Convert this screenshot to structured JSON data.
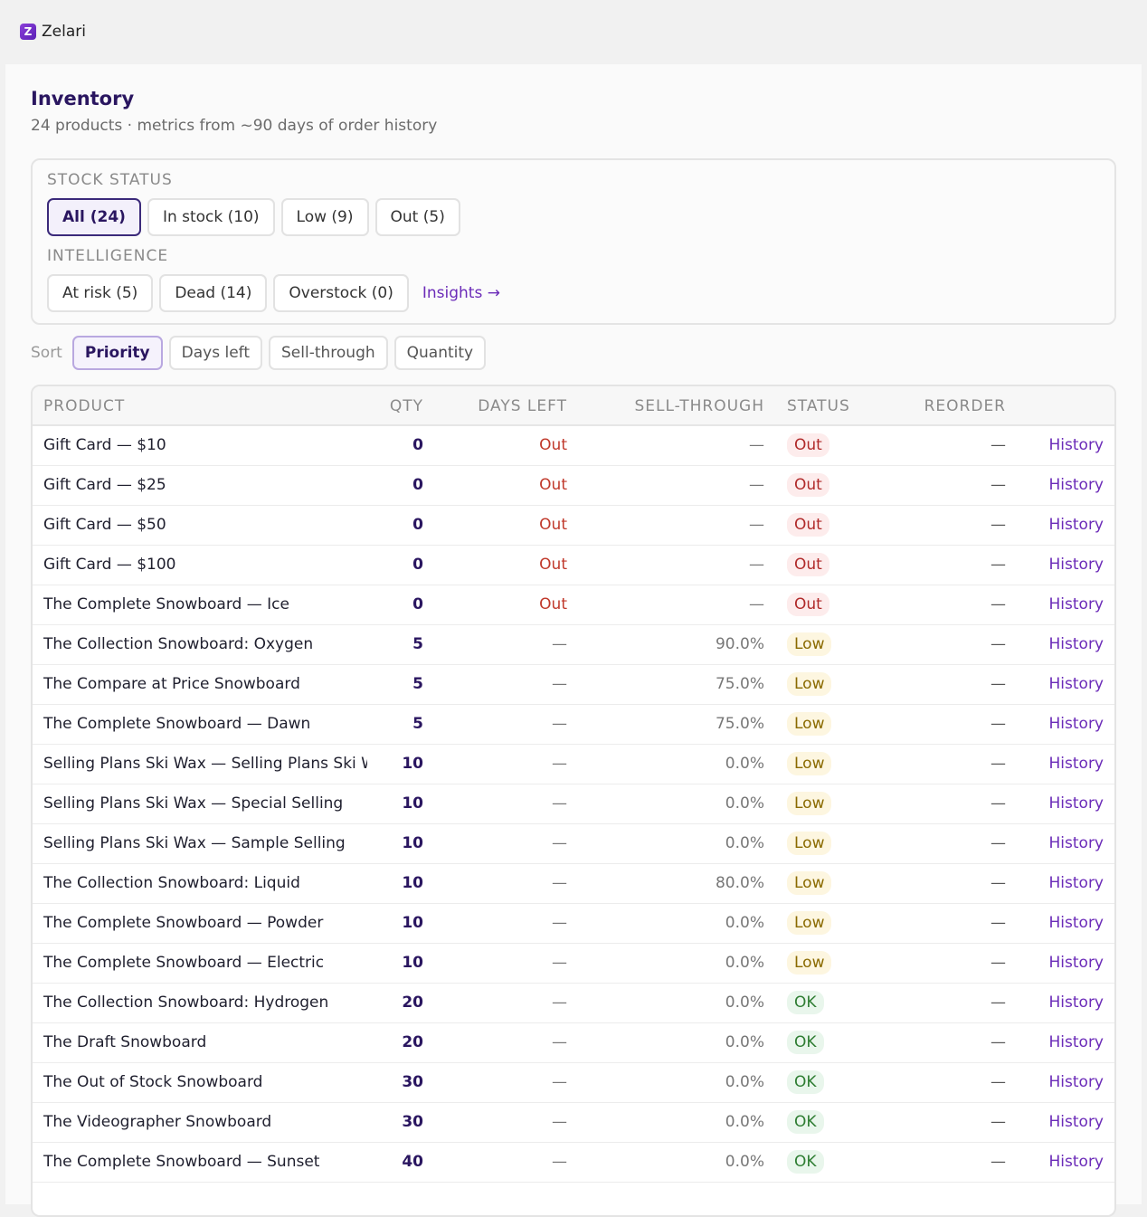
{
  "app": {
    "name": "Zelari",
    "logo_letter": "Z"
  },
  "page": {
    "title": "Inventory",
    "subtitle": "24 products · metrics from ~90 days of order history"
  },
  "filters": {
    "stock_label": "STOCK STATUS",
    "stock_chips": [
      "All (24)",
      "In stock (10)",
      "Low (9)",
      "Out (5)"
    ],
    "intel_label": "INTELLIGENCE",
    "intel_chips": [
      "At risk (5)",
      "Dead (14)",
      "Overstock (0)"
    ],
    "insights_link": "Insights →"
  },
  "sort": {
    "label": "Sort",
    "options": [
      "Priority",
      "Days left",
      "Sell-through",
      "Quantity"
    ]
  },
  "table": {
    "headers": [
      "PRODUCT",
      "QTY",
      "DAYS LEFT",
      "SELL-THROUGH",
      "STATUS",
      "REORDER"
    ],
    "history_label": "History",
    "rows": [
      {
        "product": "Gift Card — $10",
        "qty": "0",
        "days": "Out",
        "sell": "—",
        "status": "Out",
        "reorder": "—"
      },
      {
        "product": "Gift Card — $25",
        "qty": "0",
        "days": "Out",
        "sell": "—",
        "status": "Out",
        "reorder": "—"
      },
      {
        "product": "Gift Card — $50",
        "qty": "0",
        "days": "Out",
        "sell": "—",
        "status": "Out",
        "reorder": "—"
      },
      {
        "product": "Gift Card — $100",
        "qty": "0",
        "days": "Out",
        "sell": "—",
        "status": "Out",
        "reorder": "—"
      },
      {
        "product": "The Complete Snowboard — Ice",
        "qty": "0",
        "days": "Out",
        "sell": "—",
        "status": "Out",
        "reorder": "—"
      },
      {
        "product": "The Collection Snowboard: Oxygen",
        "qty": "5",
        "days": "—",
        "sell": "90.0%",
        "status": "Low",
        "reorder": "—"
      },
      {
        "product": "The Compare at Price Snowboard",
        "qty": "5",
        "days": "—",
        "sell": "75.0%",
        "status": "Low",
        "reorder": "—"
      },
      {
        "product": "The Complete Snowboard — Dawn",
        "qty": "5",
        "days": "—",
        "sell": "75.0%",
        "status": "Low",
        "reorder": "—"
      },
      {
        "product": "Selling Plans Ski Wax — Selling Plans Ski Wax",
        "qty": "10",
        "days": "—",
        "sell": "0.0%",
        "status": "Low",
        "reorder": "—"
      },
      {
        "product": "Selling Plans Ski Wax — Special Selling",
        "qty": "10",
        "days": "—",
        "sell": "0.0%",
        "status": "Low",
        "reorder": "—"
      },
      {
        "product": "Selling Plans Ski Wax — Sample Selling",
        "qty": "10",
        "days": "—",
        "sell": "0.0%",
        "status": "Low",
        "reorder": "—"
      },
      {
        "product": "The Collection Snowboard: Liquid",
        "qty": "10",
        "days": "—",
        "sell": "80.0%",
        "status": "Low",
        "reorder": "—"
      },
      {
        "product": "The Complete Snowboard — Powder",
        "qty": "10",
        "days": "—",
        "sell": "0.0%",
        "status": "Low",
        "reorder": "—"
      },
      {
        "product": "The Complete Snowboard — Electric",
        "qty": "10",
        "days": "—",
        "sell": "0.0%",
        "status": "Low",
        "reorder": "—"
      },
      {
        "product": "The Collection Snowboard: Hydrogen",
        "qty": "20",
        "days": "—",
        "sell": "0.0%",
        "status": "OK",
        "reorder": "—"
      },
      {
        "product": "The Draft Snowboard",
        "qty": "20",
        "days": "—",
        "sell": "0.0%",
        "status": "OK",
        "reorder": "—"
      },
      {
        "product": "The Out of Stock Snowboard",
        "qty": "30",
        "days": "—",
        "sell": "0.0%",
        "status": "OK",
        "reorder": "—"
      },
      {
        "product": "The Videographer Snowboard",
        "qty": "30",
        "days": "—",
        "sell": "0.0%",
        "status": "OK",
        "reorder": "—"
      },
      {
        "product": "The Complete Snowboard — Sunset",
        "qty": "40",
        "days": "—",
        "sell": "0.0%",
        "status": "OK",
        "reorder": "—"
      }
    ]
  }
}
